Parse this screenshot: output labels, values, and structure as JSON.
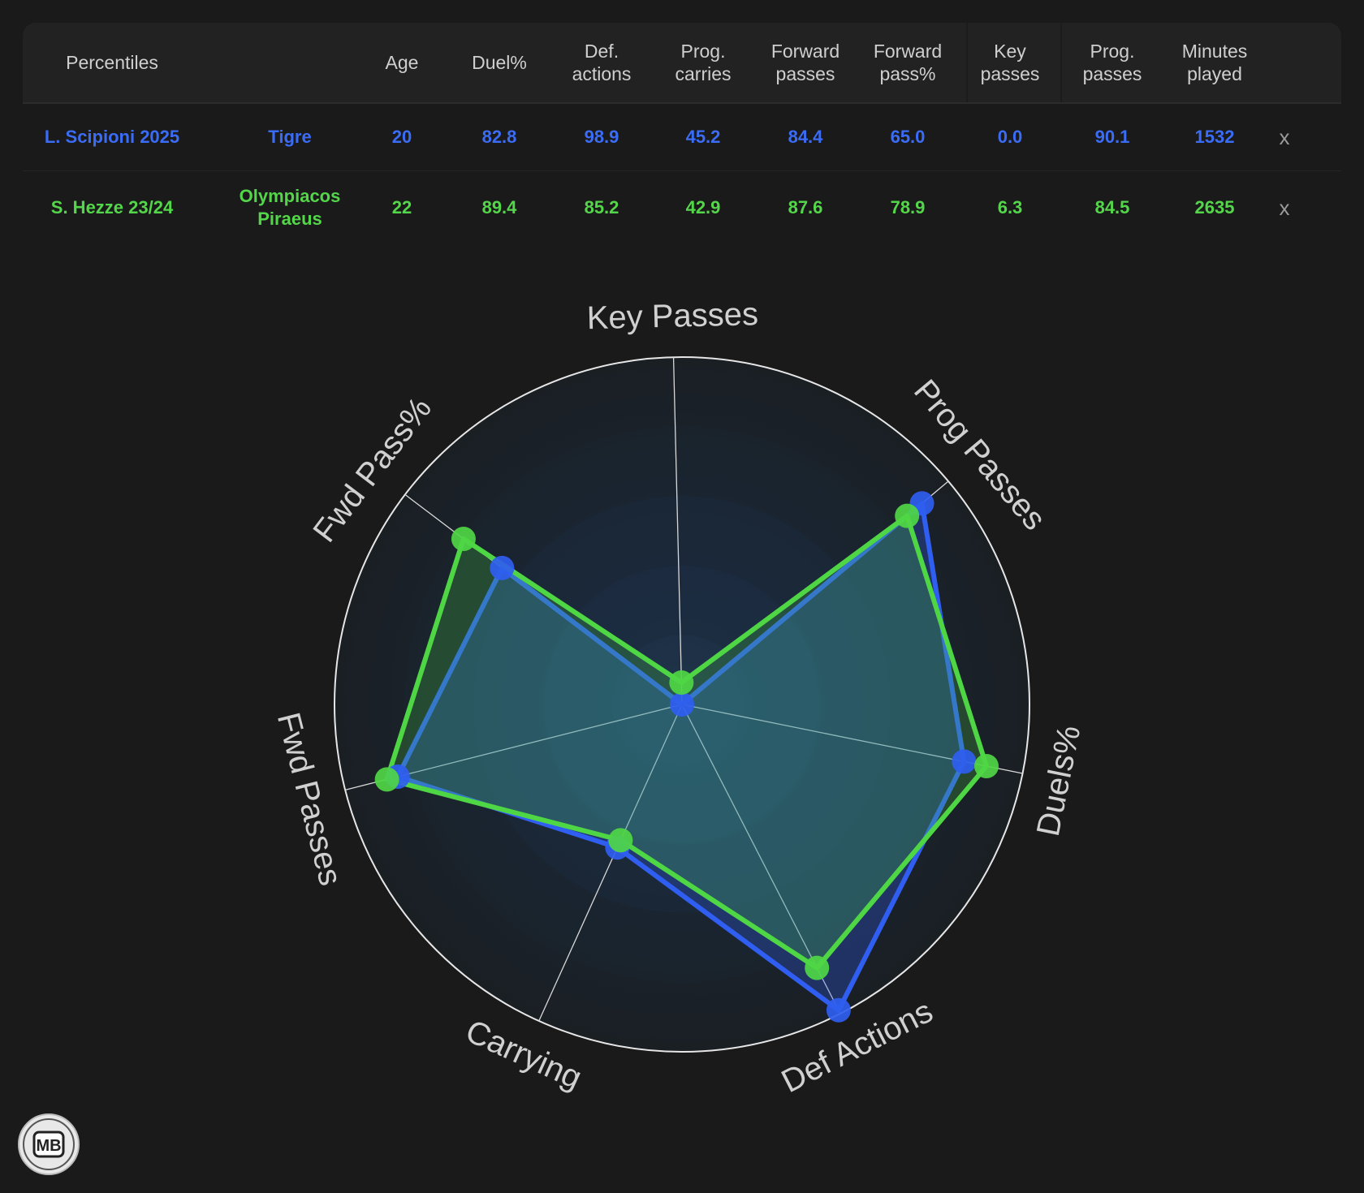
{
  "table": {
    "headers": [
      "Percentiles",
      "",
      "Age",
      "Duel%",
      "Def.\nactions",
      "Prog.\ncarries",
      "Forward\npasses",
      "Forward\npass%",
      "Key\npasses",
      "Prog.\npasses",
      "Minutes\nplayed"
    ],
    "rows": [
      {
        "name": "L. Scipioni 2025",
        "team": "Tigre",
        "cells": [
          "20",
          "82.8",
          "98.9",
          "45.2",
          "84.4",
          "65.0",
          "0.0",
          "90.1",
          "1532"
        ],
        "remove": "x"
      },
      {
        "name": "S. Hezze 23/24",
        "team": "Olympiacos\nPiraeus",
        "cells": [
          "22",
          "89.4",
          "85.2",
          "42.9",
          "87.6",
          "78.9",
          "6.3",
          "84.5",
          "2635"
        ],
        "remove": "x"
      }
    ]
  },
  "chart_data": {
    "type": "radar",
    "axes": [
      "Key Passes",
      "Prog Passes",
      "Duels%",
      "Def Actions",
      "Carrying",
      "Fwd Passes",
      "Fwd Pass%"
    ],
    "range": [
      0,
      100
    ],
    "series": [
      {
        "name": "L. Scipioni 2025",
        "color": "#2f5ef0",
        "values": [
          0.0,
          90.1,
          82.8,
          98.9,
          45.2,
          84.4,
          65.0
        ]
      },
      {
        "name": "S. Hezze 23/24",
        "color": "#4fd645",
        "values": [
          6.3,
          84.5,
          89.4,
          85.2,
          42.9,
          87.6,
          78.9
        ]
      }
    ]
  },
  "logo": {
    "text": "MB"
  },
  "colors": {
    "background": "#1a1a1a",
    "player1": "#3b6cf5",
    "player2": "#54d64a"
  }
}
